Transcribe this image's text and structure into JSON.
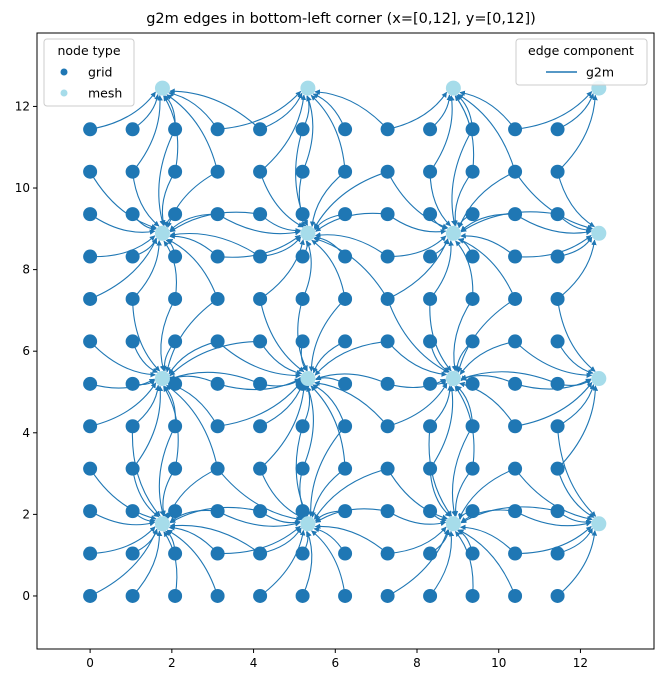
{
  "chart_data": {
    "type": "scatter",
    "title": "g2m edges in bottom-left corner (x=[0,12], y=[0,12])",
    "xlabel": "",
    "ylabel": "",
    "xlim": [
      -1.3,
      13.8
    ],
    "ylim": [
      -1.3,
      13.8
    ],
    "x_ticks": [
      0,
      2,
      4,
      6,
      8,
      10,
      12
    ],
    "y_ticks": [
      0,
      2,
      4,
      6,
      8,
      10,
      12
    ],
    "grid": false,
    "colors": {
      "grid": "#1f77b4",
      "mesh": "#a6dcea",
      "edge": "#1f77b4"
    },
    "grid_nodes": {
      "x": [
        0,
        1.04,
        2.08,
        3.12,
        4.16,
        5.2,
        6.24,
        7.28,
        8.32,
        9.36,
        10.4,
        11.44
      ],
      "y": [
        0,
        1.04,
        2.08,
        3.12,
        4.16,
        5.2,
        6.24,
        7.28,
        8.32,
        9.36,
        10.4,
        11.44
      ]
    },
    "mesh_nodes": {
      "x": [
        1.77,
        5.33,
        8.89,
        12.45
      ],
      "y": [
        1.77,
        5.33,
        8.89,
        12.45
      ]
    },
    "edge_component": "g2m",
    "legends": [
      {
        "title": "node type",
        "position": "upper-left",
        "entries": [
          {
            "label": "grid",
            "marker": "dot",
            "color": "#1f77b4"
          },
          {
            "label": "mesh",
            "marker": "dot",
            "color": "#a6dcea"
          }
        ]
      },
      {
        "title": "edge component",
        "position": "upper-right",
        "entries": [
          {
            "label": "g2m",
            "marker": "line",
            "color": "#1f77b4"
          }
        ]
      }
    ]
  }
}
